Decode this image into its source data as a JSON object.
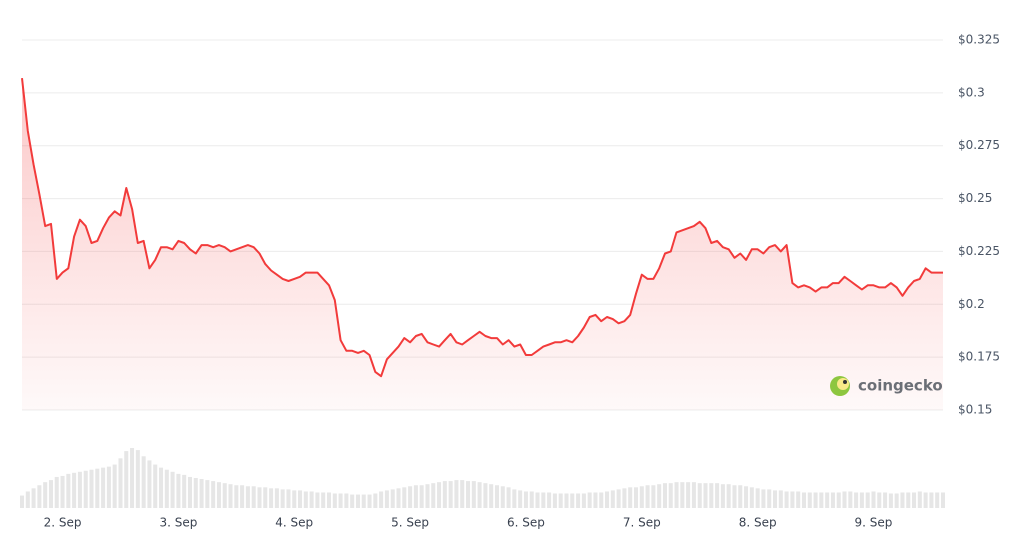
{
  "chart_data": {
    "type": "line",
    "color": "#f23b3b",
    "watermark": "coingecko",
    "xlim": [
      1.65,
      9.6
    ],
    "ylim": [
      0.15,
      0.325
    ],
    "xticks": [
      {
        "value": 2,
        "label": "2. Sep"
      },
      {
        "value": 3,
        "label": "3. Sep"
      },
      {
        "value": 4,
        "label": "4. Sep"
      },
      {
        "value": 5,
        "label": "5. Sep"
      },
      {
        "value": 6,
        "label": "6. Sep"
      },
      {
        "value": 7,
        "label": "7. Sep"
      },
      {
        "value": 8,
        "label": "8. Sep"
      },
      {
        "value": 9,
        "label": "9. Sep"
      }
    ],
    "yticks": [
      {
        "value": 0.15,
        "label": "$0.15"
      },
      {
        "value": 0.175,
        "label": "$0.175"
      },
      {
        "value": 0.2,
        "label": "$0.2"
      },
      {
        "value": 0.225,
        "label": "$0.225"
      },
      {
        "value": 0.25,
        "label": "$0.25"
      },
      {
        "value": 0.275,
        "label": "$0.275"
      },
      {
        "value": 0.3,
        "label": "$0.3"
      },
      {
        "value": 0.325,
        "label": "$0.325"
      }
    ],
    "grid": true,
    "x": [
      1.65,
      1.7,
      1.75,
      1.8,
      1.85,
      1.9,
      1.95,
      2.0,
      2.05,
      2.1,
      2.15,
      2.2,
      2.25,
      2.3,
      2.35,
      2.4,
      2.45,
      2.5,
      2.55,
      2.6,
      2.65,
      2.7,
      2.75,
      2.8,
      2.85,
      2.9,
      2.95,
      3.0,
      3.05,
      3.1,
      3.15,
      3.2,
      3.25,
      3.3,
      3.35,
      3.4,
      3.45,
      3.5,
      3.55,
      3.6,
      3.65,
      3.7,
      3.75,
      3.8,
      3.85,
      3.9,
      3.95,
      4.0,
      4.05,
      4.1,
      4.15,
      4.2,
      4.25,
      4.3,
      4.35,
      4.4,
      4.45,
      4.5,
      4.55,
      4.6,
      4.65,
      4.7,
      4.75,
      4.8,
      4.85,
      4.9,
      4.95,
      5.0,
      5.05,
      5.1,
      5.15,
      5.2,
      5.25,
      5.3,
      5.35,
      5.4,
      5.45,
      5.5,
      5.55,
      5.6,
      5.65,
      5.7,
      5.75,
      5.8,
      5.85,
      5.9,
      5.95,
      6.0,
      6.05,
      6.1,
      6.15,
      6.2,
      6.25,
      6.3,
      6.35,
      6.4,
      6.45,
      6.5,
      6.55,
      6.6,
      6.65,
      6.7,
      6.75,
      6.8,
      6.85,
      6.9,
      6.95,
      7.0,
      7.05,
      7.1,
      7.15,
      7.2,
      7.25,
      7.3,
      7.35,
      7.4,
      7.45,
      7.5,
      7.55,
      7.6,
      7.65,
      7.7,
      7.75,
      7.8,
      7.85,
      7.9,
      7.95,
      8.0,
      8.05,
      8.1,
      8.15,
      8.2,
      8.25,
      8.3,
      8.35,
      8.4,
      8.45,
      8.5,
      8.55,
      8.6,
      8.65,
      8.7,
      8.75,
      8.8,
      8.85,
      8.9,
      8.95,
      9.0,
      9.05,
      9.1,
      9.15,
      9.2,
      9.25,
      9.3,
      9.35,
      9.4,
      9.45,
      9.5,
      9.55,
      9.6
    ],
    "values": [
      0.307,
      0.282,
      0.266,
      0.252,
      0.237,
      0.238,
      0.212,
      0.215,
      0.217,
      0.232,
      0.24,
      0.237,
      0.229,
      0.23,
      0.236,
      0.241,
      0.244,
      0.242,
      0.255,
      0.245,
      0.229,
      0.23,
      0.217,
      0.221,
      0.227,
      0.227,
      0.226,
      0.23,
      0.229,
      0.226,
      0.224,
      0.228,
      0.228,
      0.227,
      0.228,
      0.227,
      0.225,
      0.226,
      0.227,
      0.228,
      0.227,
      0.224,
      0.219,
      0.216,
      0.214,
      0.212,
      0.211,
      0.212,
      0.213,
      0.215,
      0.215,
      0.215,
      0.212,
      0.209,
      0.202,
      0.183,
      0.178,
      0.178,
      0.177,
      0.178,
      0.176,
      0.168,
      0.166,
      0.174,
      0.177,
      0.18,
      0.184,
      0.182,
      0.185,
      0.186,
      0.182,
      0.181,
      0.18,
      0.183,
      0.186,
      0.182,
      0.181,
      0.183,
      0.185,
      0.187,
      0.185,
      0.184,
      0.184,
      0.181,
      0.183,
      0.18,
      0.181,
      0.176,
      0.176,
      0.178,
      0.18,
      0.181,
      0.182,
      0.182,
      0.183,
      0.182,
      0.185,
      0.189,
      0.194,
      0.195,
      0.192,
      0.194,
      0.193,
      0.191,
      0.192,
      0.195,
      0.205,
      0.214,
      0.212,
      0.212,
      0.217,
      0.224,
      0.225,
      0.234,
      0.235,
      0.236,
      0.237,
      0.239,
      0.236,
      0.229,
      0.23,
      0.227,
      0.226,
      0.222,
      0.224,
      0.221,
      0.226,
      0.226,
      0.224,
      0.227,
      0.228,
      0.225,
      0.228,
      0.21,
      0.208,
      0.209,
      0.208,
      0.206,
      0.208,
      0.208,
      0.21,
      0.21,
      0.213,
      0.211,
      0.209,
      0.207,
      0.209,
      0.209,
      0.208,
      0.208,
      0.21,
      0.208,
      0.204,
      0.208,
      0.211,
      0.212,
      0.217,
      0.215,
      0.215,
      0.215
    ],
    "volume": [
      12,
      16,
      19,
      22,
      25,
      27,
      30,
      31,
      33,
      34,
      35,
      36,
      37,
      38,
      39,
      40,
      42,
      48,
      55,
      58,
      56,
      50,
      46,
      42,
      39,
      37,
      35,
      33,
      32,
      30,
      29,
      28,
      27,
      26,
      25,
      24,
      23,
      22,
      22,
      21,
      21,
      20,
      20,
      19,
      19,
      18,
      18,
      17,
      17,
      16,
      16,
      15,
      15,
      15,
      14,
      14,
      14,
      13,
      13,
      13,
      13,
      14,
      16,
      17,
      18,
      19,
      20,
      21,
      22,
      22,
      23,
      24,
      25,
      26,
      26,
      27,
      27,
      26,
      26,
      25,
      24,
      23,
      22,
      21,
      20,
      18,
      17,
      16,
      16,
      15,
      15,
      15,
      14,
      14,
      14,
      14,
      14,
      14,
      15,
      15,
      15,
      16,
      17,
      18,
      19,
      20,
      20,
      21,
      22,
      22,
      23,
      24,
      24,
      25,
      25,
      25,
      25,
      24,
      24,
      24,
      24,
      23,
      23,
      22,
      22,
      21,
      20,
      19,
      18,
      18,
      17,
      17,
      16,
      16,
      16,
      15,
      15,
      15,
      15,
      15,
      15,
      15,
      16,
      16,
      15,
      15,
      15,
      16,
      15,
      15,
      14,
      14,
      15,
      15,
      15,
      16,
      15,
      15,
      15,
      15
    ]
  }
}
